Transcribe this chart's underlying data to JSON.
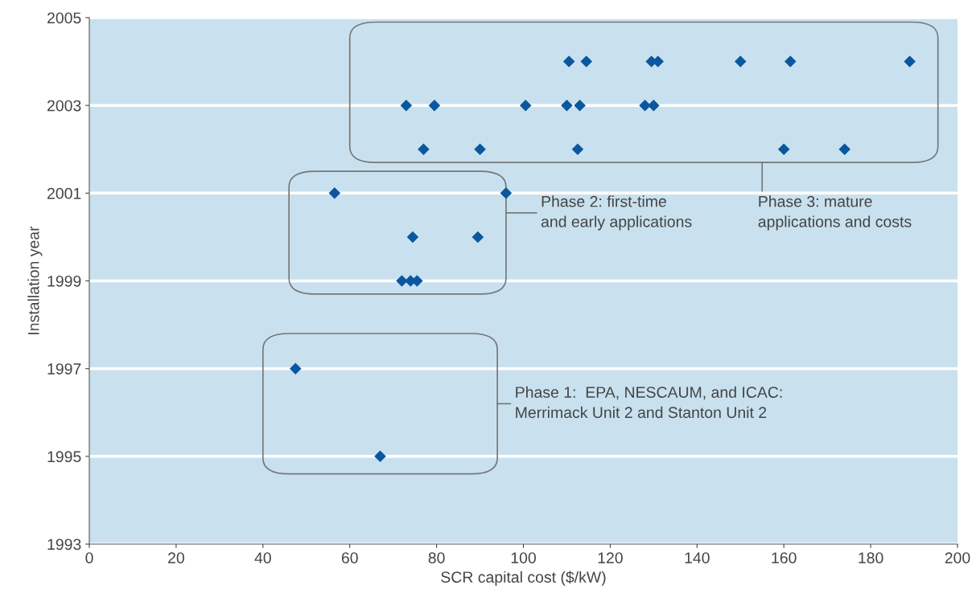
{
  "chart_data": {
    "type": "scatter",
    "xlabel": "SCR capital cost ($/kW)",
    "ylabel": "Installation year",
    "series": [
      {
        "color": "#0b579f",
        "x": [
          110.5,
          114.5,
          129.5,
          131,
          150,
          161.5,
          189,
          73,
          79.5,
          100.5,
          110,
          113,
          128,
          130,
          77,
          90,
          112.5,
          160,
          174,
          56.5,
          96,
          74.5,
          89.5,
          72,
          74,
          75.5,
          47.5,
          67
        ],
        "values": [
          2004,
          2004,
          2004,
          2004,
          2004,
          2004,
          2004,
          2003,
          2003,
          2003,
          2003,
          2003,
          2003,
          2003,
          2002,
          2002,
          2002,
          2002,
          2002,
          2001,
          2001,
          2000,
          2000,
          1999,
          1999,
          1999,
          1997,
          1995
        ]
      }
    ],
    "marker": "diamond",
    "xlim": [
      0,
      200
    ],
    "xticks": [
      0,
      20,
      40,
      60,
      80,
      100,
      120,
      140,
      160,
      180,
      200
    ],
    "ylim": [
      1993,
      2005
    ],
    "yticks": [
      1993,
      1995,
      1997,
      1999,
      2001,
      2003,
      2005
    ],
    "grid": "y",
    "annotations": [
      "Phase 2: first-time\nand early applications",
      "Phase 3: mature\napplications and costs",
      "Phase 1:  EPA, NESCAUM, and ICAC:\nMerrimack Unit 2 and Stanton Unit 2"
    ]
  }
}
